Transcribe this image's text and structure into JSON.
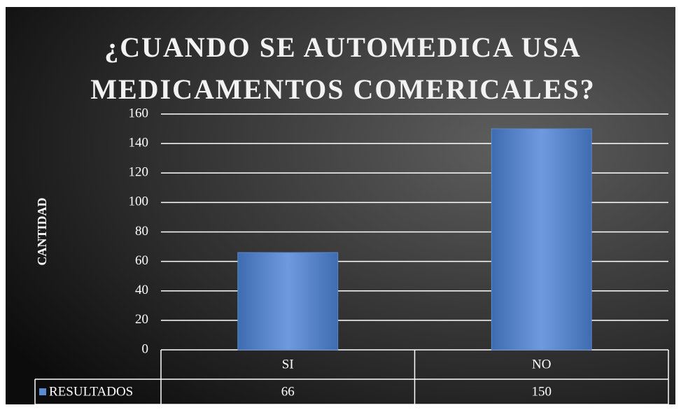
{
  "chart_data": {
    "type": "bar",
    "title": [
      "¿CUANDO SE AUTOMEDICA USA",
      "MEDICAMENTOS  COMERICALES?"
    ],
    "y_label": "CANTIDAD",
    "categories": [
      "SI",
      "NO"
    ],
    "series": [
      {
        "name": "RESULTADOS",
        "color": "#5b8bd0",
        "values": [
          66,
          150
        ]
      }
    ],
    "ylim": [
      0,
      160
    ],
    "yticks": [
      0,
      20,
      40,
      60,
      80,
      100,
      120,
      140,
      160
    ],
    "grid": true,
    "data_table": true
  }
}
